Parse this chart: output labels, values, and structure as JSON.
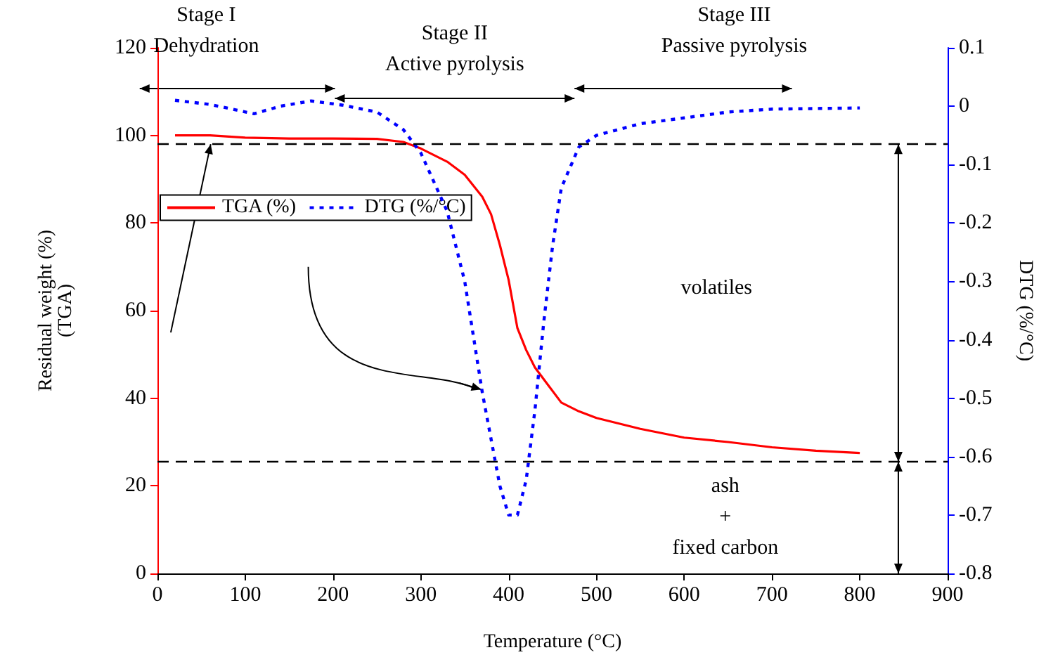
{
  "chart_data": {
    "type": "line",
    "xlabel": "Temperature (°C)",
    "ylabel": "Residual weight (%)\n(TGA)",
    "y2label": "DTG (%/°C)",
    "xlim": [
      0,
      900
    ],
    "xticks": [
      0,
      100,
      200,
      300,
      400,
      500,
      600,
      700,
      800,
      900
    ],
    "ylim": [
      0,
      120
    ],
    "yticks": [
      0,
      20,
      40,
      60,
      80,
      100,
      120
    ],
    "y2lim": [
      -0.8,
      0.1
    ],
    "y2ticks": [
      -0.8,
      -0.7,
      -0.6,
      -0.5,
      -0.4,
      -0.3,
      -0.2,
      -0.1,
      0,
      0.1
    ],
    "grid": false,
    "legend": "top left",
    "marker": "none",
    "series": [
      {
        "name": "TGA (%)",
        "color": "#ff0000",
        "line_style": "solid",
        "x": [
          20,
          60,
          100,
          150,
          200,
          250,
          280,
          300,
          330,
          350,
          370,
          380,
          390,
          400,
          410,
          420,
          430,
          445,
          460,
          480,
          500,
          550,
          600,
          650,
          700,
          750,
          800
        ],
        "values": [
          100,
          100,
          99.5,
          99.3,
          99.3,
          99.2,
          98.5,
          97,
          94,
          91,
          86,
          82,
          75,
          67,
          56,
          51,
          47,
          43,
          39,
          37,
          35.5,
          33,
          31,
          30,
          28.8,
          28,
          27.5
        ]
      },
      {
        "name": "DTG (%/°C)",
        "color": "#0000ff",
        "line_style": "dotted",
        "axis": "y2",
        "x": [
          20,
          60,
          110,
          140,
          175,
          210,
          250,
          280,
          300,
          330,
          350,
          370,
          390,
          400,
          410,
          420,
          430,
          440,
          450,
          460,
          480,
          500,
          550,
          600,
          650,
          700,
          800
        ],
        "values": [
          0.01,
          0.003,
          -0.013,
          0,
          0.009,
          0.002,
          -0.01,
          -0.04,
          -0.08,
          -0.18,
          -0.3,
          -0.49,
          -0.65,
          -0.7,
          -0.7,
          -0.64,
          -0.52,
          -0.37,
          -0.24,
          -0.14,
          -0.07,
          -0.05,
          -0.03,
          -0.02,
          -0.01,
          -0.005,
          -0.003
        ]
      }
    ],
    "ref_lines": [
      {
        "axis": "y",
        "value": 98,
        "color": "#000000",
        "line_style": "dashed"
      },
      {
        "axis": "y",
        "value": 25.5,
        "color": "#000000",
        "line_style": "dashed"
      }
    ],
    "annotations": [
      "Stage I\nDehydration",
      "Stage II\nActive pyrolysis",
      "Stage III\nPassive pyrolysis",
      "volatiles",
      "ash\n+\nfixed carbon"
    ]
  }
}
